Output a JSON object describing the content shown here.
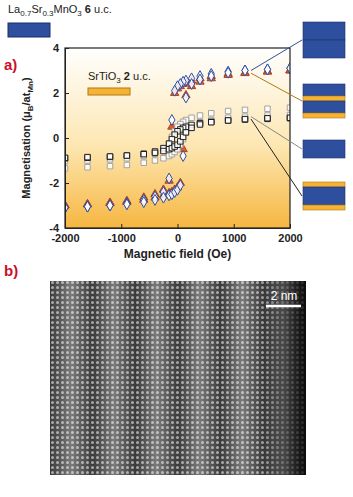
{
  "chart_data": {
    "type": "scatter",
    "xlabel": "Magnetic field (Oe)",
    "ylabel": [
      {
        "text": "Magnetisation (μ"
      },
      {
        "text": "B",
        "sub": true
      },
      {
        "text": "/at"
      },
      {
        "text": "Mn",
        "sub": true
      },
      {
        "text": ")"
      }
    ],
    "xlim": [
      -2000,
      2000
    ],
    "ylim": [
      -4,
      4
    ],
    "xticks": [
      -2000,
      -1000,
      0,
      1000,
      2000
    ],
    "yticks": [
      -4,
      -2,
      0,
      2,
      4
    ],
    "grid": false,
    "annotations": [
      {
        "text": [
          {
            "text": "La"
          },
          {
            "text": "0.7",
            "sub": true
          },
          {
            "text": "Sr"
          },
          {
            "text": "0.3",
            "sub": true
          },
          {
            "text": "MnO"
          },
          {
            "text": "3",
            "sub": true
          },
          {
            "text": " "
          },
          {
            "text": "6",
            "bold": true
          },
          {
            "text": " u.c."
          }
        ]
      },
      {
        "text": [
          {
            "text": "SrTiO"
          },
          {
            "text": "3",
            "sub": true
          },
          {
            "text": " "
          },
          {
            "text": "2",
            "bold": true
          },
          {
            "text": " u.c."
          }
        ]
      }
    ],
    "series": [
      {
        "color": "#e4572e",
        "marker": "triangle",
        "x": [
          2000,
          1600,
          1200,
          900,
          600,
          400,
          250,
          150,
          100,
          50,
          0,
          -50,
          -100,
          -150,
          -250,
          -400,
          -600,
          -900,
          -1200,
          -1600,
          -2000,
          -2000,
          -1600,
          -1200,
          -900,
          -600,
          -400,
          -250,
          -150,
          -100,
          -50,
          0,
          50,
          100,
          150,
          250,
          400,
          600,
          900,
          1200,
          1600,
          2000
        ],
        "values": [
          3.0,
          2.95,
          2.9,
          2.85,
          2.75,
          2.65,
          2.55,
          2.45,
          2.4,
          2.3,
          2.2,
          2.0,
          0.5,
          -1.9,
          -2.3,
          -2.5,
          -2.65,
          -2.8,
          -2.88,
          -2.95,
          -3.0,
          -3.0,
          -2.95,
          -2.9,
          -2.85,
          -2.75,
          -2.65,
          -2.55,
          -2.45,
          -2.4,
          -2.3,
          -2.2,
          -2.0,
          -0.5,
          1.9,
          2.3,
          2.5,
          2.65,
          2.8,
          2.88,
          2.95,
          3.0
        ]
      },
      {
        "color": "#2a4ea6",
        "marker": "open-diamond",
        "x": [
          2000,
          1600,
          1200,
          900,
          600,
          400,
          250,
          150,
          100,
          50,
          0,
          -50,
          -100,
          -150,
          -250,
          -400,
          -600,
          -900,
          -1200,
          -1600,
          -2000,
          -2000,
          -1600,
          -1200,
          -900,
          -600,
          -400,
          -250,
          -150,
          -100,
          -50,
          0,
          50,
          100,
          150,
          250,
          400,
          600,
          900,
          1200,
          1600,
          2000
        ],
        "values": [
          3.1,
          3.05,
          3.0,
          2.95,
          2.85,
          2.75,
          2.65,
          2.55,
          2.5,
          2.4,
          2.3,
          2.1,
          0.8,
          -1.8,
          -2.4,
          -2.6,
          -2.75,
          -2.9,
          -3.0,
          -3.05,
          -3.1,
          -3.1,
          -3.05,
          -3.0,
          -2.95,
          -2.85,
          -2.75,
          -2.65,
          -2.55,
          -2.5,
          -2.4,
          -2.3,
          -2.1,
          -0.8,
          1.8,
          2.4,
          2.6,
          2.75,
          2.9,
          3.0,
          3.05,
          3.1
        ]
      },
      {
        "color": "#a3a3a3",
        "marker": "open-square",
        "x": [
          2000,
          1600,
          1200,
          900,
          600,
          400,
          250,
          150,
          100,
          50,
          0,
          -50,
          -100,
          -150,
          -250,
          -400,
          -600,
          -900,
          -1200,
          -1600,
          -2000,
          -2000,
          -1600,
          -1200,
          -900,
          -600,
          -400,
          -250,
          -150,
          -100,
          -50,
          0,
          50,
          100,
          150,
          250,
          400,
          600,
          900,
          1200,
          1600,
          2000
        ],
        "values": [
          1.35,
          1.3,
          1.25,
          1.2,
          1.1,
          1.0,
          0.9,
          0.8,
          0.72,
          0.62,
          0.5,
          0.3,
          0.05,
          -0.25,
          -0.5,
          -0.7,
          -0.8,
          -0.9,
          -0.95,
          -1.0,
          -1.02,
          -1.35,
          -1.3,
          -1.25,
          -1.2,
          -1.1,
          -1.0,
          -0.9,
          -0.8,
          -0.72,
          -0.62,
          -0.5,
          -0.3,
          -0.05,
          0.25,
          0.5,
          0.7,
          0.8,
          0.9,
          0.95,
          1.0,
          1.02
        ]
      },
      {
        "color": "#1e1e1e",
        "marker": "open-square",
        "x": [
          2000,
          1600,
          1200,
          900,
          600,
          400,
          250,
          150,
          100,
          50,
          0,
          -50,
          -100,
          -150,
          -250,
          -400,
          -600,
          -900,
          -1200,
          -1600,
          -2000,
          -2000,
          -1600,
          -1200,
          -900,
          -600,
          -400,
          -250,
          -150,
          -100,
          -50,
          0,
          50,
          100,
          150,
          250,
          400,
          600,
          900,
          1200,
          1600,
          2000
        ],
        "values": [
          0.88,
          0.85,
          0.82,
          0.78,
          0.72,
          0.66,
          0.58,
          0.5,
          0.45,
          0.38,
          0.3,
          0.15,
          -0.05,
          -0.25,
          -0.45,
          -0.6,
          -0.7,
          -0.78,
          -0.84,
          -0.88,
          -0.9,
          -0.88,
          -0.85,
          -0.82,
          -0.78,
          -0.72,
          -0.66,
          -0.58,
          -0.5,
          -0.45,
          -0.38,
          -0.3,
          -0.15,
          0.05,
          0.25,
          0.45,
          0.6,
          0.7,
          0.78,
          0.84,
          0.88,
          0.9
        ]
      }
    ]
  },
  "figure": {
    "panel_labels": [
      "a)",
      "b)"
    ],
    "scale_bar_label": "2 nm"
  }
}
